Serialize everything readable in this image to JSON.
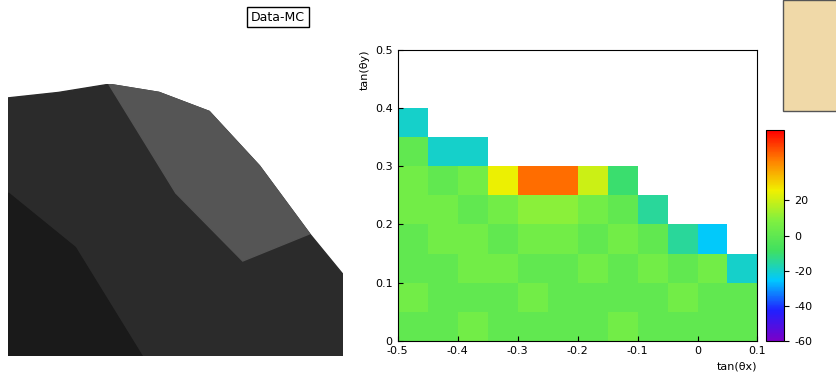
{
  "chart_data": {
    "type": "heatmap",
    "title": "Data-MC",
    "x_label": "tan(θx)",
    "y_label": "tan(θy)",
    "xbins": [
      -0.5,
      -0.45,
      -0.4,
      -0.35,
      -0.3,
      -0.25,
      -0.2,
      -0.15,
      -0.1,
      -0.05,
      0,
      0.05,
      0.1
    ],
    "ybins": [
      0,
      0.05,
      0.1,
      0.15,
      0.2,
      0.25,
      0.3,
      0.35,
      0.4,
      0.45,
      0.5
    ],
    "cells": [
      [
        0,
        0,
        5,
        0,
        0,
        0,
        0,
        5,
        0,
        0,
        0,
        0
      ],
      [
        5,
        0,
        0,
        0,
        5,
        0,
        0,
        0,
        0,
        5,
        0,
        0
      ],
      [
        0,
        0,
        5,
        5,
        0,
        0,
        5,
        0,
        5,
        0,
        5,
        -20
      ],
      [
        0,
        5,
        5,
        0,
        5,
        5,
        0,
        5,
        0,
        -15,
        -25,
        null
      ],
      [
        5,
        5,
        0,
        5,
        10,
        10,
        5,
        0,
        -15,
        null,
        null,
        null
      ],
      [
        5,
        0,
        5,
        25,
        45,
        45,
        20,
        -10,
        null,
        null,
        null,
        null
      ],
      [
        0,
        -20,
        -20,
        null,
        null,
        null,
        null,
        null,
        null,
        null,
        null,
        null
      ],
      [
        -20,
        null,
        null,
        null,
        null,
        null,
        null,
        null,
        null,
        null,
        null,
        null
      ],
      [
        null,
        null,
        null,
        null,
        null,
        null,
        null,
        null,
        null,
        null,
        null,
        null
      ],
      [
        null,
        null,
        null,
        null,
        null,
        null,
        null,
        null,
        null,
        null,
        null,
        null
      ]
    ],
    "xlim": [
      -0.5,
      0.1
    ],
    "ylim": [
      0,
      0.5
    ],
    "xticks": [
      -0.5,
      -0.4,
      -0.3,
      -0.2,
      -0.1,
      0,
      0.1
    ],
    "yticks": [
      0,
      0.1,
      0.2,
      0.3,
      0.4,
      0.5
    ],
    "color_range": [
      -60,
      60
    ],
    "color_ticks": [
      -60,
      -40,
      -20,
      0,
      20
    ]
  }
}
